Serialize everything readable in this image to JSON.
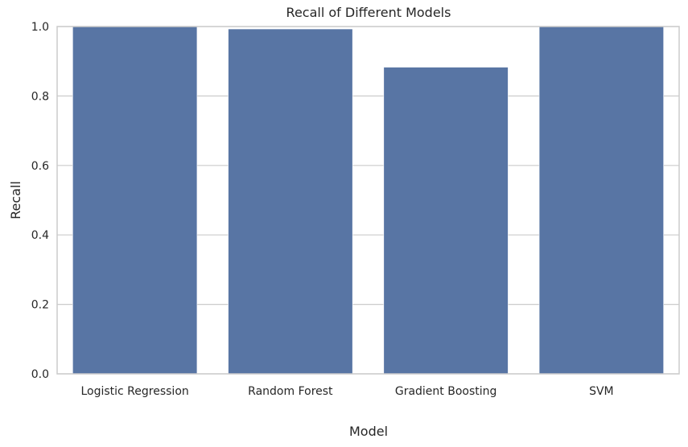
{
  "chart_data": {
    "type": "bar",
    "title": "Recall of Different Models",
    "xlabel": "Model",
    "ylabel": "Recall",
    "categories": [
      "Logistic Regression",
      "Random Forest",
      "Gradient Boosting",
      "SVM"
    ],
    "values": [
      1.0,
      0.993,
      0.883,
      1.0
    ],
    "ylim": [
      0,
      1.0
    ],
    "yticks": [
      0.0,
      0.2,
      0.4,
      0.6,
      0.8,
      1.0
    ],
    "ytick_labels": [
      "0.0",
      "0.2",
      "0.4",
      "0.6",
      "0.8",
      "1.0"
    ],
    "grid": "y",
    "legend": "none",
    "colors": {
      "bar": "#5875a4",
      "grid": "#cccccc",
      "spine": "#cccccc",
      "text": "#262626",
      "background": "#ffffff"
    }
  }
}
